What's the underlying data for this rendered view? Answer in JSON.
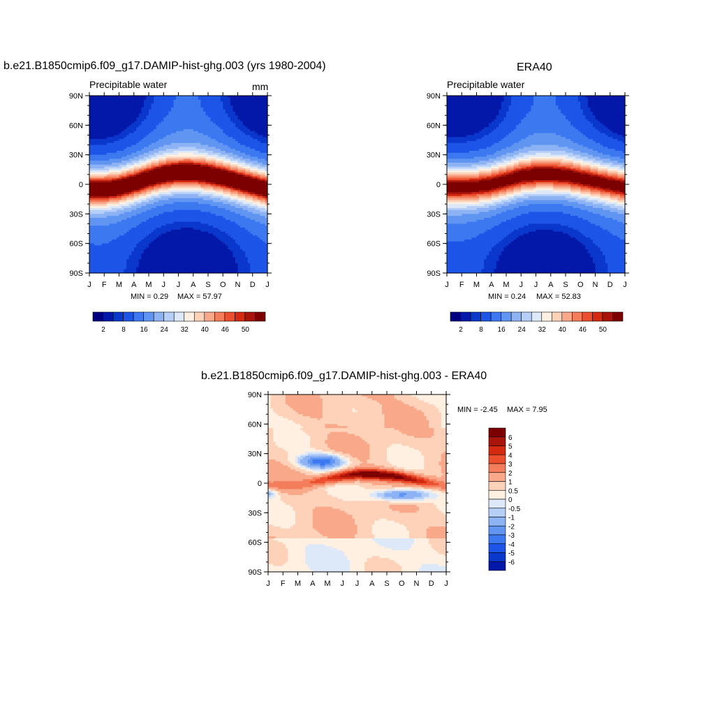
{
  "chart_data": [
    {
      "type": "heatmap",
      "title": "b.e21.B1850cmip6.f09_g17.DAMIP-hist-ghg.003 (yrs 1980-2004)",
      "left_label": "Precipitable water",
      "units": "mm",
      "x_ticks": [
        "J",
        "F",
        "M",
        "A",
        "M",
        "J",
        "J",
        "A",
        "S",
        "O",
        "N",
        "D",
        "J"
      ],
      "y_ticks": [
        "90N",
        "60N",
        "30N",
        "0",
        "30S",
        "60S",
        "90S"
      ],
      "min_label": "MIN =   0.29",
      "max_label": "MAX =  57.97",
      "levels": [
        2,
        4,
        8,
        12,
        16,
        20,
        24,
        28,
        32,
        36,
        40,
        44,
        46,
        48,
        50
      ],
      "colorbar_labels": [
        "2",
        "8",
        "16",
        "24",
        "32",
        "40",
        "46",
        "50"
      ],
      "field_max": 57.97,
      "itcz_lat": [
        -5,
        -5,
        -3,
        1,
        6,
        10,
        12,
        12,
        10,
        7,
        3,
        -1,
        -5
      ]
    },
    {
      "type": "heatmap",
      "title": "ERA40",
      "left_label": "Precipitable water",
      "x_ticks": [
        "J",
        "F",
        "M",
        "A",
        "M",
        "J",
        "J",
        "A",
        "S",
        "O",
        "N",
        "D",
        "J"
      ],
      "y_ticks": [
        "90N",
        "60N",
        "30N",
        "0",
        "30S",
        "60S",
        "90S"
      ],
      "min_label": "MIN =   0.24",
      "max_label": "MAX =  52.83",
      "levels": [
        2,
        4,
        8,
        12,
        16,
        20,
        24,
        28,
        32,
        36,
        40,
        44,
        46,
        48,
        50
      ],
      "colorbar_labels": [
        "2",
        "8",
        "16",
        "24",
        "32",
        "40",
        "46",
        "50"
      ],
      "field_max": 52.83,
      "itcz_lat": [
        -3,
        -3,
        -2,
        0,
        4,
        8,
        10,
        10,
        9,
        6,
        3,
        0,
        -3
      ]
    },
    {
      "type": "heatmap",
      "title": "b.e21.B1850cmip6.f09_g17.DAMIP-hist-ghg.003 - ERA40",
      "x_ticks": [
        "J",
        "F",
        "M",
        "A",
        "M",
        "J",
        "J",
        "A",
        "S",
        "O",
        "N",
        "D",
        "J"
      ],
      "y_ticks": [
        "90N",
        "60N",
        "30N",
        "0",
        "30S",
        "60S",
        "90S"
      ],
      "min_label": "MIN =  -2.45",
      "max_label": "MAX =    7.95",
      "levels": [
        -6,
        -5,
        -4,
        -3,
        -2,
        -1,
        -0.5,
        0,
        0.5,
        1,
        2,
        3,
        4,
        5,
        6
      ],
      "colorbar_labels": [
        "6",
        "5",
        "4",
        "3",
        "2",
        "1",
        "0.5",
        "0",
        "-0.5",
        "-1",
        "-2",
        "-3",
        "-4",
        "-5",
        "-6"
      ]
    }
  ],
  "colors": {
    "palette": [
      "#000080",
      "#0318a8",
      "#0a37cc",
      "#1c55e8",
      "#3c78f0",
      "#6096f2",
      "#8db3f5",
      "#b6cff7",
      "#dde9f8",
      "#fff0e2",
      "#fdd2b8",
      "#f9a98a",
      "#f47d5c",
      "#ec4f2e",
      "#d42a12",
      "#a8140a",
      "#7d0000"
    ]
  }
}
